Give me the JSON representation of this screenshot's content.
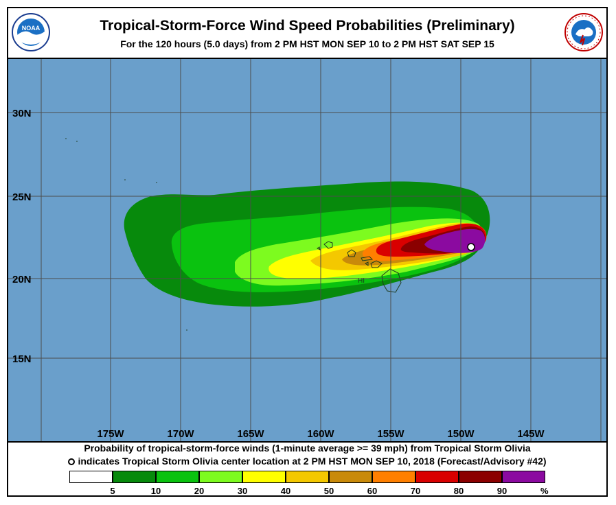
{
  "header": {
    "title": "Tropical-Storm-Force Wind Speed Probabilities (Preliminary)",
    "subtitle": "For the 120 hours (5.0 days) from 2 PM HST MON SEP 10 to 2 PM HST SAT SEP 15",
    "noaa_logo_text": "NOAA",
    "nws_logo_text": "NATIONAL WEATHER SERVICE"
  },
  "map": {
    "ocean_color": "#6a9fcb",
    "grid_color": "#4c4c4c",
    "lat_labels": [
      "30N",
      "25N",
      "20N",
      "15N"
    ],
    "lon_labels": [
      "175W",
      "170W",
      "165W",
      "160W",
      "155W",
      "150W",
      "145W"
    ],
    "island_label": "HI",
    "storm_marker": "Tropical Storm Olivia center"
  },
  "footer": {
    "line1": "Probability of tropical-storm-force winds (1-minute average >= 39 mph) from Tropical Storm Olivia",
    "line2": "indicates Tropical Storm Olivia center location at 2 PM HST MON SEP 10, 2018 (Forecast/Advisory #42)"
  },
  "legend": {
    "colors": [
      "#ffffff",
      "#078a0c",
      "#0ac20f",
      "#7dfb1f",
      "#ffff00",
      "#f4c800",
      "#c98a0a",
      "#ff7f00",
      "#d90000",
      "#8b0000",
      "#8b0aa0"
    ],
    "labels": [
      "5",
      "10",
      "20",
      "30",
      "40",
      "50",
      "60",
      "70",
      "80",
      "90"
    ],
    "unit": "%"
  }
}
